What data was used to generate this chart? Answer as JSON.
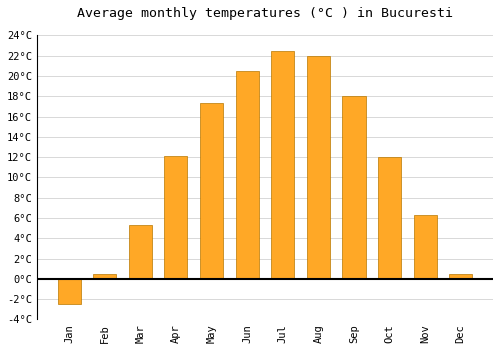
{
  "months": [
    "Jan",
    "Feb",
    "Mar",
    "Apr",
    "May",
    "Jun",
    "Jul",
    "Aug",
    "Sep",
    "Oct",
    "Nov",
    "Dec"
  ],
  "values": [
    -2.5,
    0.5,
    5.3,
    12.1,
    17.3,
    20.5,
    22.5,
    22.0,
    18.0,
    12.0,
    6.3,
    0.5
  ],
  "bar_color": "#FFA826",
  "bar_edge_color": "#B87800",
  "title": "Average monthly temperatures (°C ) in Bucuresti",
  "title_fontsize": 9.5,
  "ylim": [
    -4,
    25
  ],
  "yticks": [
    -4,
    -2,
    0,
    2,
    4,
    6,
    8,
    10,
    12,
    14,
    16,
    18,
    20,
    22,
    24
  ],
  "ytick_labels": [
    "-4°C",
    "-2°C",
    "0°C",
    "2°C",
    "4°C",
    "6°C",
    "8°C",
    "10°C",
    "12°C",
    "14°C",
    "16°C",
    "18°C",
    "20°C",
    "22°C",
    "24°C"
  ],
  "grid_color": "#d8d8d8",
  "background_color": "#ffffff",
  "zero_line_color": "#000000",
  "tick_fontsize": 7.5,
  "title_font": "monospace",
  "bar_width": 0.65
}
